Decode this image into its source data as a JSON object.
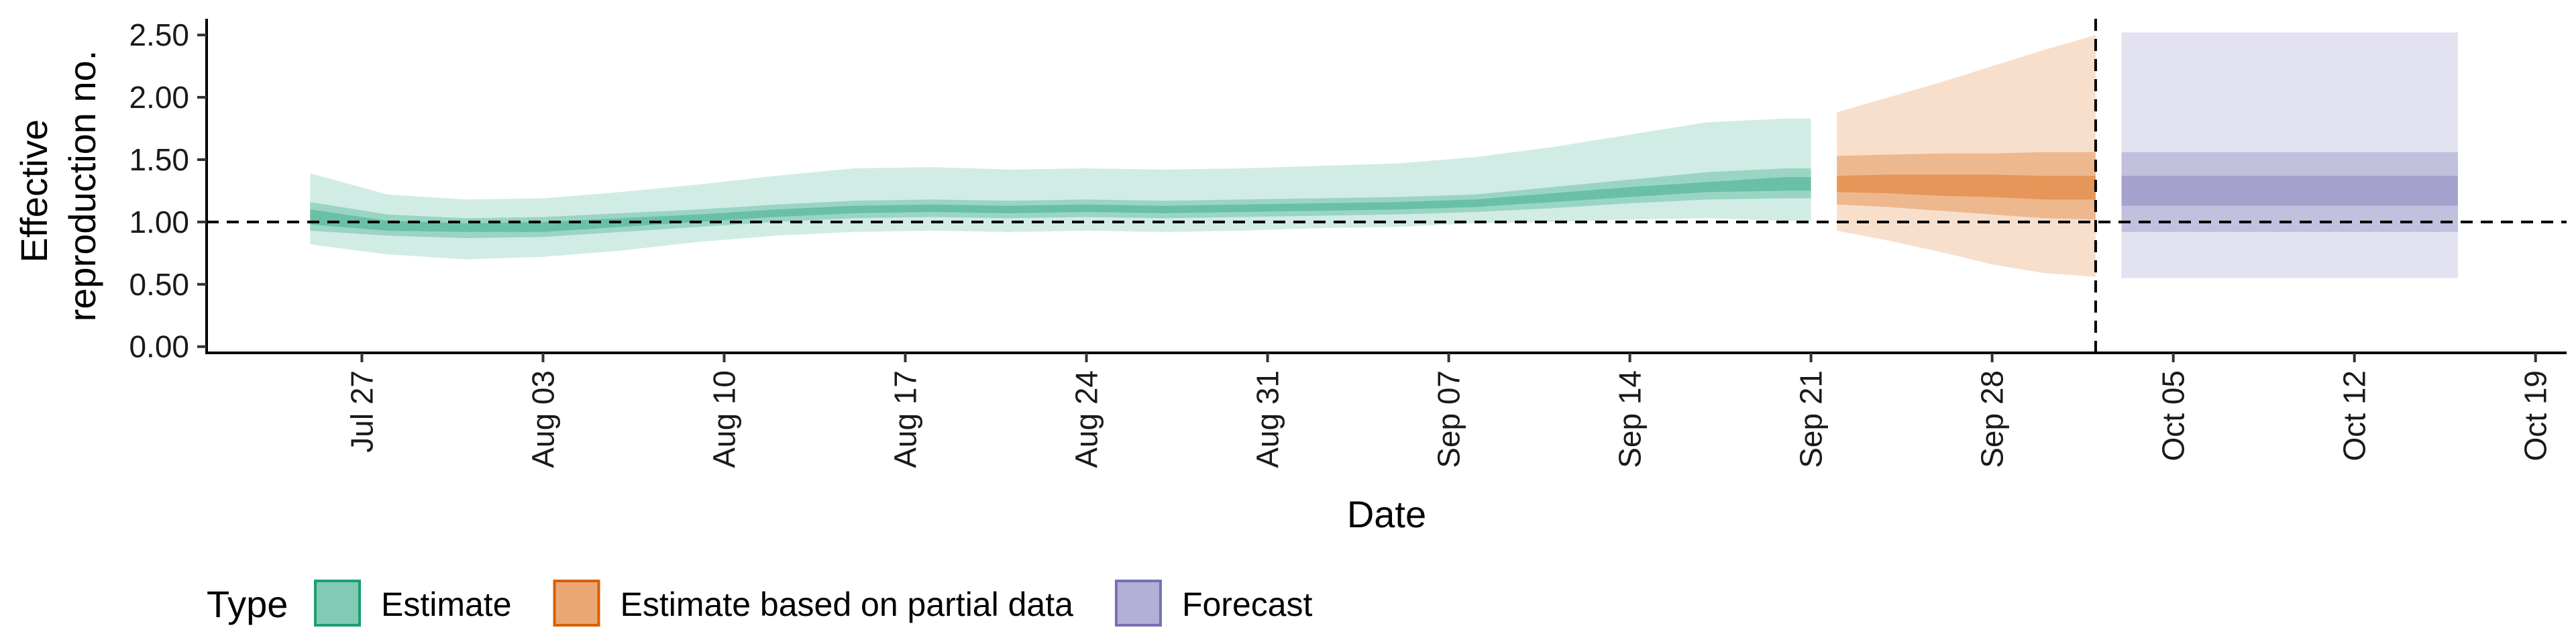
{
  "chart_data": {
    "type": "area",
    "xlabel": "Date",
    "ylabel_lines": [
      "Effective",
      "reproduction no."
    ],
    "x_tick_labels": [
      "Jul 27",
      "Aug 03",
      "Aug 10",
      "Aug 17",
      "Aug 24",
      "Aug 31",
      "Sep 07",
      "Sep 14",
      "Sep 21",
      "Sep 28",
      "Oct 05",
      "Oct 12",
      "Oct 19"
    ],
    "x_tick_days": [
      0,
      7,
      14,
      21,
      28,
      35,
      42,
      49,
      56,
      63,
      70,
      77,
      84
    ],
    "y_tick_labels": [
      "0.00",
      "0.50",
      "1.00",
      "1.50",
      "2.00",
      "2.50"
    ],
    "y_ticks": [
      0,
      0.5,
      1.0,
      1.5,
      2.0,
      2.5
    ],
    "ylim": [
      -0.05,
      2.63
    ],
    "xlim": [
      -6.0,
      85.2
    ],
    "reference_line_y": 1.0,
    "forecast_date_day": 67,
    "legend": {
      "title": "Type",
      "position": "bottom-left"
    },
    "series": [
      {
        "name": "Estimate",
        "color": "#1b9e77",
        "days": [
          -2,
          1,
          4,
          7,
          10,
          13,
          16,
          19,
          22,
          25,
          28,
          31,
          34,
          37,
          40,
          43,
          46,
          49,
          52,
          55,
          56
        ],
        "median": [
          1.04,
          0.97,
          0.95,
          0.96,
          0.99,
          1.03,
          1.07,
          1.1,
          1.11,
          1.1,
          1.11,
          1.1,
          1.11,
          1.12,
          1.13,
          1.15,
          1.19,
          1.24,
          1.28,
          1.3,
          1.3
        ],
        "lower20": [
          0.98,
          0.93,
          0.92,
          0.92,
          0.96,
          1.0,
          1.04,
          1.07,
          1.08,
          1.07,
          1.08,
          1.07,
          1.08,
          1.09,
          1.1,
          1.12,
          1.16,
          1.2,
          1.24,
          1.25,
          1.25
        ],
        "upper20": [
          1.1,
          1.01,
          0.99,
          1.0,
          1.03,
          1.06,
          1.1,
          1.13,
          1.14,
          1.13,
          1.14,
          1.13,
          1.14,
          1.15,
          1.16,
          1.18,
          1.23,
          1.28,
          1.32,
          1.36,
          1.36
        ],
        "lower50": [
          0.93,
          0.89,
          0.87,
          0.88,
          0.92,
          0.96,
          1.0,
          1.03,
          1.04,
          1.03,
          1.04,
          1.03,
          1.04,
          1.05,
          1.06,
          1.08,
          1.11,
          1.15,
          1.18,
          1.19,
          1.19
        ],
        "upper50": [
          1.16,
          1.06,
          1.03,
          1.04,
          1.07,
          1.1,
          1.14,
          1.17,
          1.18,
          1.17,
          1.18,
          1.17,
          1.18,
          1.19,
          1.2,
          1.22,
          1.28,
          1.34,
          1.4,
          1.43,
          1.43
        ],
        "lower90": [
          0.82,
          0.74,
          0.7,
          0.72,
          0.77,
          0.84,
          0.89,
          0.92,
          0.93,
          0.92,
          0.93,
          0.92,
          0.93,
          0.95,
          0.96,
          0.99,
          1.0,
          1.02,
          1.03,
          1.01,
          1.01
        ],
        "upper90": [
          1.39,
          1.22,
          1.18,
          1.19,
          1.24,
          1.3,
          1.37,
          1.43,
          1.44,
          1.42,
          1.43,
          1.42,
          1.43,
          1.45,
          1.47,
          1.52,
          1.6,
          1.7,
          1.8,
          1.83,
          1.83
        ]
      },
      {
        "name": "Estimate based on partial data",
        "color": "#d95f02",
        "days": [
          57,
          59,
          61,
          63,
          65,
          67
        ],
        "median": [
          1.3,
          1.3,
          1.29,
          1.28,
          1.27,
          1.27
        ],
        "lower20": [
          1.24,
          1.23,
          1.21,
          1.2,
          1.18,
          1.18
        ],
        "upper20": [
          1.37,
          1.38,
          1.38,
          1.38,
          1.37,
          1.37
        ],
        "lower50": [
          1.14,
          1.12,
          1.09,
          1.06,
          1.03,
          1.02
        ],
        "upper50": [
          1.53,
          1.54,
          1.55,
          1.55,
          1.56,
          1.56
        ],
        "lower90": [
          0.93,
          0.85,
          0.76,
          0.66,
          0.59,
          0.56
        ],
        "upper90": [
          1.88,
          2.0,
          2.12,
          2.25,
          2.38,
          2.5
        ]
      },
      {
        "name": "Forecast",
        "color": "#7570b3",
        "days": [
          68,
          81
        ],
        "median": [
          1.25,
          1.25
        ],
        "lower20": [
          1.13,
          1.13
        ],
        "upper20": [
          1.37,
          1.37
        ],
        "lower50": [
          0.92,
          0.92
        ],
        "upper50": [
          1.56,
          1.56
        ],
        "lower90": [
          0.55,
          0.55
        ],
        "upper90": [
          2.52,
          2.52
        ]
      }
    ]
  }
}
